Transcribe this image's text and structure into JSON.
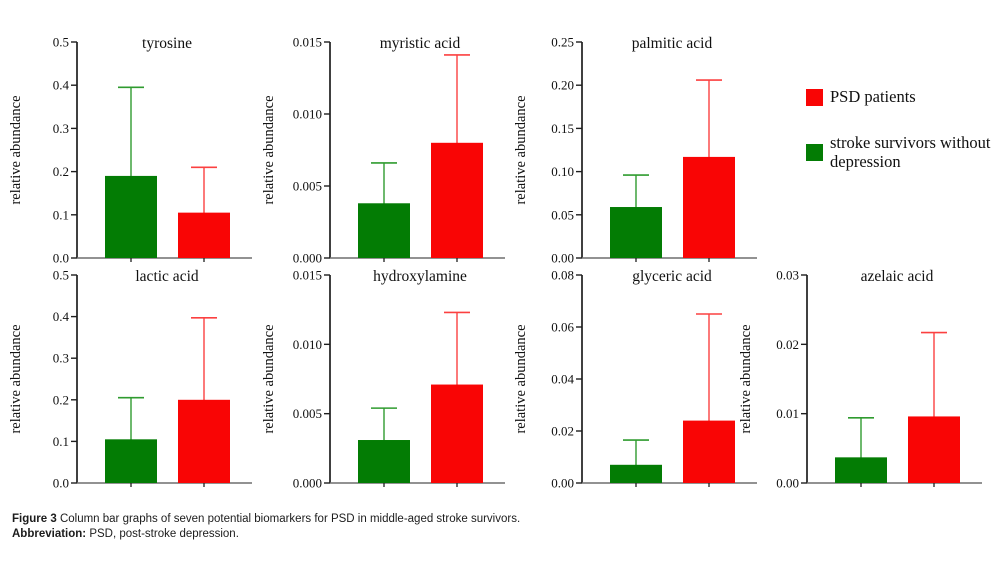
{
  "colors": {
    "psd_red": "#f90505",
    "psd_red_error": "#fb4040",
    "control_green": "#037c04",
    "control_green_error": "#2f9b2f",
    "y_axis": "#1f1f1f",
    "x_axis": "#6e6e6e",
    "text": "#111111"
  },
  "legend": {
    "items": [
      {
        "key": "psd",
        "label": "PSD patients",
        "color": "#f90505"
      },
      {
        "key": "control",
        "label": "stroke survivors without depression",
        "color": "#037c04"
      }
    ]
  },
  "caption": {
    "line1_bold": "Figure 3",
    "line1_text": "Column bar graphs of seven potential biomarkers for PSD in middle-aged stroke survivors.",
    "line2_bold": "Abbreviation:",
    "line2_text": "PSD, post-stroke depression."
  },
  "chart_data": [
    {
      "type": "bar",
      "title": "tyrosine",
      "ylabel": "relative abundance",
      "ylim": [
        0,
        0.5
      ],
      "ytick_step": 0.1,
      "ytick_decimals": 1,
      "categories": [
        "stroke survivors without depression",
        "PSD patients"
      ],
      "series": [
        {
          "name": "stroke survivors without depression",
          "group": "control",
          "value": 0.19,
          "error_top": 0.395
        },
        {
          "name": "PSD patients",
          "group": "psd",
          "value": 0.105,
          "error_top": 0.21
        }
      ]
    },
    {
      "type": "bar",
      "title": "myristic acid",
      "ylabel": "relative abundance",
      "ylim": [
        0,
        0.015
      ],
      "ytick_step": 0.005,
      "ytick_decimals": 3,
      "categories": [
        "stroke survivors without depression",
        "PSD patients"
      ],
      "series": [
        {
          "name": "stroke survivors without depression",
          "group": "control",
          "value": 0.0038,
          "error_top": 0.0066
        },
        {
          "name": "PSD patients",
          "group": "psd",
          "value": 0.008,
          "error_top": 0.0141
        }
      ]
    },
    {
      "type": "bar",
      "title": "palmitic acid",
      "ylabel": "relative abundance",
      "ylim": [
        0,
        0.25
      ],
      "ytick_step": 0.05,
      "ytick_decimals": 2,
      "categories": [
        "stroke survivors without depression",
        "PSD patients"
      ],
      "series": [
        {
          "name": "stroke survivors without depression",
          "group": "control",
          "value": 0.059,
          "error_top": 0.096
        },
        {
          "name": "PSD patients",
          "group": "psd",
          "value": 0.117,
          "error_top": 0.206
        }
      ]
    },
    {
      "type": "bar",
      "title": "lactic acid",
      "ylabel": "relative abundance",
      "ylim": [
        0,
        0.5
      ],
      "ytick_step": 0.1,
      "ytick_decimals": 1,
      "categories": [
        "stroke survivors without depression",
        "PSD patients"
      ],
      "series": [
        {
          "name": "stroke survivors without depression",
          "group": "control",
          "value": 0.105,
          "error_top": 0.205
        },
        {
          "name": "PSD patients",
          "group": "psd",
          "value": 0.2,
          "error_top": 0.397
        }
      ]
    },
    {
      "type": "bar",
      "title": "hydroxylamine",
      "ylabel": "relative abundance",
      "ylim": [
        0,
        0.015
      ],
      "ytick_step": 0.005,
      "ytick_decimals": 3,
      "categories": [
        "stroke survivors without depression",
        "PSD patients"
      ],
      "series": [
        {
          "name": "stroke survivors without depression",
          "group": "control",
          "value": 0.0031,
          "error_top": 0.0054
        },
        {
          "name": "PSD patients",
          "group": "psd",
          "value": 0.0071,
          "error_top": 0.0123
        }
      ]
    },
    {
      "type": "bar",
      "title": "glyceric acid",
      "ylabel": "relative abundance",
      "ylim": [
        0,
        0.08
      ],
      "ytick_step": 0.02,
      "ytick_decimals": 2,
      "categories": [
        "stroke survivors without depression",
        "PSD patients"
      ],
      "series": [
        {
          "name": "stroke survivors without depression",
          "group": "control",
          "value": 0.007,
          "error_top": 0.0165
        },
        {
          "name": "PSD patients",
          "group": "psd",
          "value": 0.024,
          "error_top": 0.065
        }
      ]
    },
    {
      "type": "bar",
      "title": "azelaic acid",
      "ylabel": "relative abundance",
      "ylim": [
        0,
        0.03
      ],
      "ytick_step": 0.01,
      "ytick_decimals": 2,
      "categories": [
        "stroke survivors without depression",
        "PSD patients"
      ],
      "series": [
        {
          "name": "stroke survivors without depression",
          "group": "control",
          "value": 0.0037,
          "error_top": 0.0094
        },
        {
          "name": "PSD patients",
          "group": "psd",
          "value": 0.0096,
          "error_top": 0.0217
        }
      ]
    }
  ]
}
